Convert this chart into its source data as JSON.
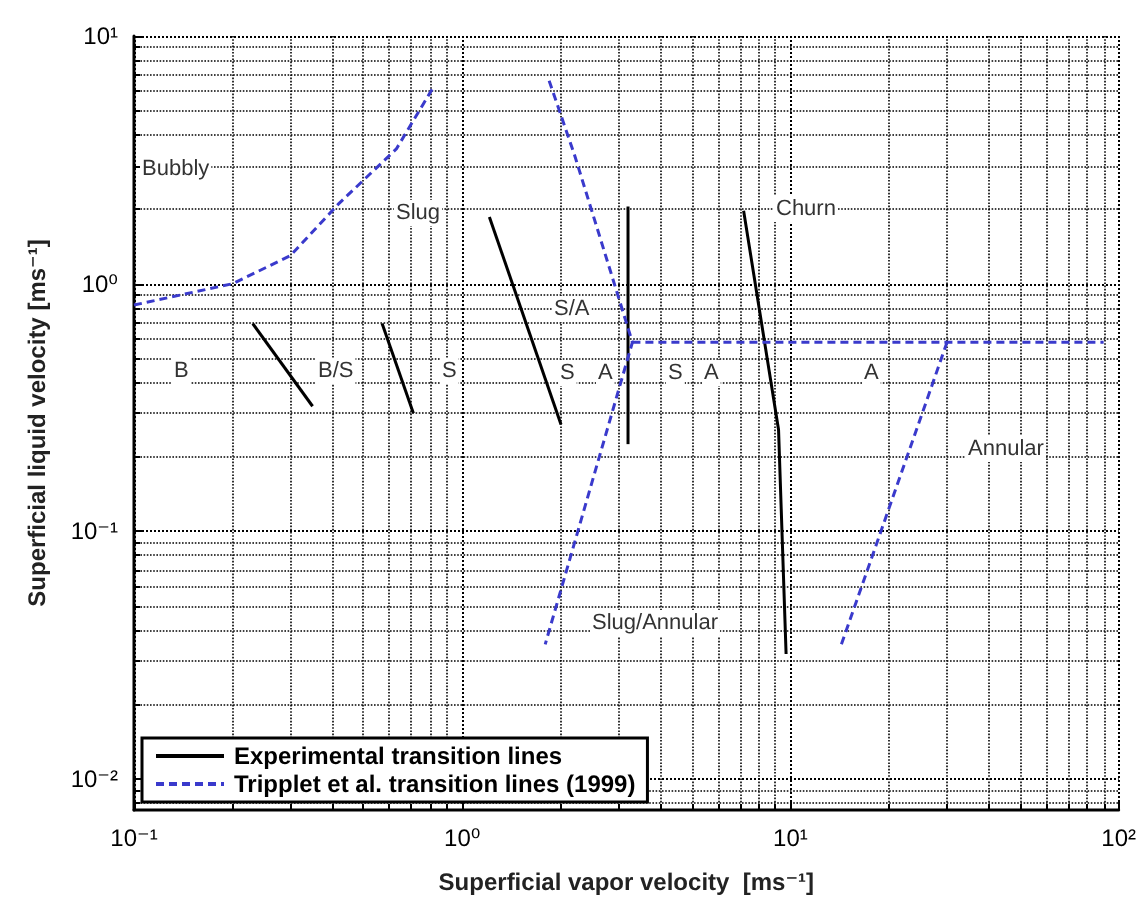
{
  "chart_data": {
    "type": "line",
    "xlabel": "Superficial vapor velocity  [ms⁻¹]",
    "ylabel": "Superficial liquid velocity [ms⁻¹]",
    "log": "xy",
    "grid": true,
    "legend": "bottom left",
    "marker": "none",
    "xlim": [
      0.1,
      100
    ],
    "xticks": [
      {
        "value": 0.1,
        "label": "10⁻¹"
      },
      {
        "value": 1,
        "label": "10⁰"
      },
      {
        "value": 10,
        "label": "10¹"
      },
      {
        "value": 100,
        "label": "10²"
      }
    ],
    "ylim": [
      0.0075,
      10
    ],
    "yticks": [
      {
        "value": 0.01,
        "label": "10⁻²"
      },
      {
        "value": 0.1,
        "label": "10⁻¹"
      },
      {
        "value": 1,
        "label": "10⁰"
      },
      {
        "value": 10,
        "label": "10¹"
      }
    ],
    "series": [
      {
        "name": "Experimental transition lines",
        "color": "#000000",
        "line_style": "solid",
        "x": [
          0.23,
          0.35
        ],
        "values": [
          0.69,
          0.32
        ]
      },
      {
        "color": "#000000",
        "line_style": "solid",
        "x": [
          0.57,
          0.71
        ],
        "values": [
          0.69,
          0.3
        ]
      },
      {
        "color": "#000000",
        "line_style": "solid",
        "x": [
          1.21,
          2.0
        ],
        "values": [
          1.86,
          0.27
        ]
      },
      {
        "color": "#000000",
        "line_style": "solid",
        "x": [
          3.2,
          3.2
        ],
        "values": [
          2.05,
          0.225
        ]
      },
      {
        "color": "#000000",
        "line_style": "solid",
        "x": [
          7.2,
          9.2,
          9.7
        ],
        "values": [
          1.97,
          0.257,
          0.032
        ]
      },
      {
        "name": "Tripplet et al. transition lines (1999)",
        "color": "#3a3acc",
        "line_style": "dashed",
        "x": [
          0.1,
          0.2,
          0.3,
          0.42,
          0.63,
          0.81
        ],
        "values": [
          0.82,
          1.0,
          1.3,
          2.1,
          3.5,
          6.1
        ]
      },
      {
        "color": "#3a3acc",
        "line_style": "dashed",
        "x": [
          1.84,
          2.2,
          3.3,
          1.79
        ],
        "values": [
          6.6,
          3.3,
          0.58,
          0.035
        ]
      },
      {
        "color": "#3a3acc",
        "line_style": "dashed",
        "x": [
          3.3,
          30,
          90
        ],
        "values": [
          0.58,
          0.58,
          0.58
        ]
      },
      {
        "color": "#3a3acc",
        "line_style": "dashed",
        "x": [
          30,
          14.3
        ],
        "values": [
          0.58,
          0.035
        ]
      }
    ],
    "annotations": [
      "Bubbly",
      "Slug",
      "Churn",
      "Annular",
      "Slug/Annular",
      "B",
      "B/S",
      "S",
      "S/A",
      "S",
      "A",
      "S",
      "A",
      "A"
    ]
  }
}
